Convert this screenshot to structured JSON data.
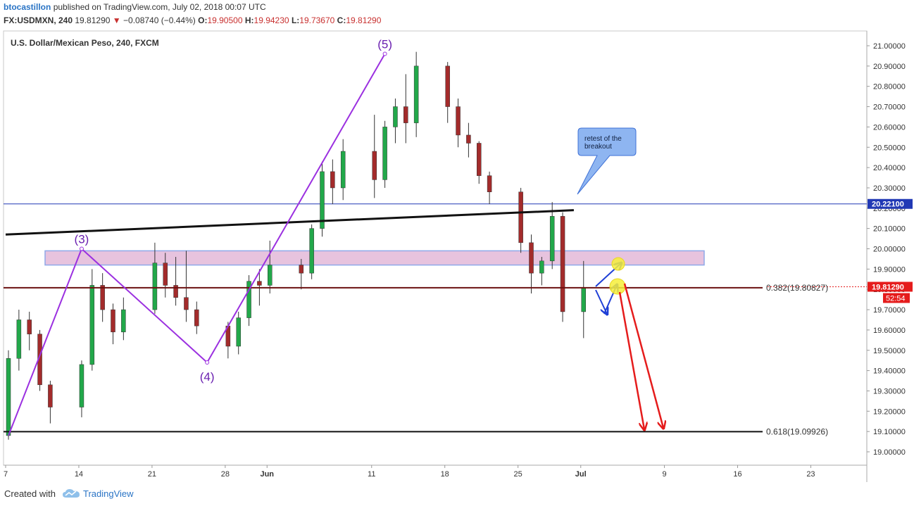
{
  "header": {
    "author": "btocastillon",
    "published": "published on TradingView.com, July 02, 2018 00:07 UTC",
    "symbol": "FX:USDMXN, 240",
    "last": "19.81290",
    "change": "−0.08740 (−0.44%)",
    "o_label": "O:",
    "o": "19.90500",
    "h_label": "H:",
    "h": "19.94230",
    "l_label": "L:",
    "l": "19.73670",
    "c_label": "C:",
    "c": "19.81290"
  },
  "footer": {
    "created_with": "Created with",
    "brand": "TradingView"
  },
  "colors": {
    "up": "#22a84a",
    "down": "#a32b2b",
    "wave": "#9b30e0",
    "arrow_red": "#e51c1c",
    "arrow_blue": "#1f3fd6",
    "price_badge": "#e51c1c",
    "level_badge": "#2139b5"
  },
  "chart_data": {
    "type": "candlestick",
    "title": "U.S. Dollar/Mexican Peso, 240, FXCM",
    "ylim": [
      18.98,
      21.12
    ],
    "y_ticks": [
      "19.00000",
      "19.10000",
      "19.20000",
      "19.30000",
      "19.40000",
      "19.50000",
      "19.60000",
      "19.70000",
      "19.80000",
      "19.90000",
      "20.00000",
      "20.10000",
      "20.20000",
      "20.30000",
      "20.40000",
      "20.50000",
      "20.60000",
      "20.70000",
      "20.80000",
      "20.90000",
      "21.00000"
    ],
    "x_ticks": [
      "7",
      "14",
      "21",
      "28",
      "Jun",
      "11",
      "18",
      "25",
      "Jul",
      "9",
      "16",
      "23"
    ],
    "price_line": {
      "value": 19.8129,
      "label": "19.81290",
      "countdown": "52:54"
    },
    "horizontal_level": {
      "value": 20.221,
      "label": "20.22100"
    },
    "fib_levels": [
      {
        "label": "0.382(19.80827)",
        "value": 19.80827
      },
      {
        "label": "0.618(19.09926)",
        "value": 19.09926
      }
    ],
    "wave_labels": [
      "(3)",
      "(4)",
      "(5)"
    ],
    "wave_points": [
      {
        "date": "May 7",
        "value": 19.08
      },
      {
        "label": "(3)",
        "date": "May 14",
        "value": 20.0
      },
      {
        "label": "(4)",
        "date": "May 26",
        "value": 19.44
      },
      {
        "label": "(5)",
        "date": "Jun 12",
        "value": 20.96
      }
    ],
    "trendline": {
      "start": {
        "date": "May 7",
        "value": 20.07
      },
      "end": {
        "date": "Jun 30",
        "value": 20.19
      }
    },
    "resistance_zone": {
      "low": 19.92,
      "high": 19.99
    },
    "callout": {
      "text_line1": "retest of the",
      "text_line2": "breakout"
    },
    "series": [
      {
        "date": "May 7",
        "ohlc": [
          19.08,
          19.5,
          19.06,
          19.46
        ]
      },
      {
        "date": "May 8",
        "ohlc": [
          19.46,
          19.7,
          19.4,
          19.65
        ]
      },
      {
        "date": "May 9",
        "ohlc": [
          19.65,
          19.69,
          19.5,
          19.58
        ]
      },
      {
        "date": "May 10",
        "ohlc": [
          19.58,
          19.6,
          19.3,
          19.33
        ]
      },
      {
        "date": "May 11",
        "ohlc": [
          19.33,
          19.35,
          19.14,
          19.22
        ]
      },
      {
        "date": "May 14",
        "ohlc": [
          19.22,
          19.45,
          19.17,
          19.43
        ]
      },
      {
        "date": "May 15",
        "ohlc": [
          19.43,
          19.9,
          19.4,
          19.82
        ]
      },
      {
        "date": "May 16",
        "ohlc": [
          19.82,
          19.88,
          19.64,
          19.7
        ]
      },
      {
        "date": "May 17",
        "ohlc": [
          19.7,
          19.73,
          19.53,
          19.59
        ]
      },
      {
        "date": "May 18",
        "ohlc": [
          19.59,
          19.76,
          19.55,
          19.7
        ]
      },
      {
        "date": "May 21",
        "ohlc": [
          19.7,
          20.03,
          19.68,
          19.93
        ]
      },
      {
        "date": "May 22",
        "ohlc": [
          19.93,
          19.98,
          19.76,
          19.82
        ]
      },
      {
        "date": "May 23",
        "ohlc": [
          19.82,
          19.96,
          19.72,
          19.76
        ]
      },
      {
        "date": "May 24",
        "ohlc": [
          19.76,
          19.99,
          19.64,
          19.7
        ]
      },
      {
        "date": "May 25",
        "ohlc": [
          19.7,
          19.74,
          19.58,
          19.62
        ]
      },
      {
        "date": "May 28",
        "ohlc": [
          19.62,
          19.64,
          19.46,
          19.52
        ]
      },
      {
        "date": "May 29",
        "ohlc": [
          19.52,
          19.69,
          19.48,
          19.66
        ]
      },
      {
        "date": "May 30",
        "ohlc": [
          19.66,
          19.87,
          19.62,
          19.84
        ]
      },
      {
        "date": "May 31",
        "ohlc": [
          19.84,
          19.9,
          19.72,
          19.82
        ]
      },
      {
        "date": "Jun 1",
        "ohlc": [
          19.82,
          20.04,
          19.78,
          19.92
        ]
      },
      {
        "date": "Jun 4",
        "ohlc": [
          19.92,
          19.95,
          19.8,
          19.88
        ]
      },
      {
        "date": "Jun 5",
        "ohlc": [
          19.88,
          20.12,
          19.85,
          20.1
        ]
      },
      {
        "date": "Jun 6",
        "ohlc": [
          20.1,
          20.43,
          20.06,
          20.38
        ]
      },
      {
        "date": "Jun 7",
        "ohlc": [
          20.38,
          20.44,
          20.22,
          20.3
        ]
      },
      {
        "date": "Jun 8",
        "ohlc": [
          20.3,
          20.54,
          20.24,
          20.48
        ]
      },
      {
        "date": "Jun 11",
        "ohlc": [
          20.48,
          20.66,
          20.25,
          20.34
        ]
      },
      {
        "date": "Jun 12",
        "ohlc": [
          20.34,
          20.63,
          20.3,
          20.6
        ]
      },
      {
        "date": "Jun 13",
        "ohlc": [
          20.6,
          20.74,
          20.52,
          20.7
        ]
      },
      {
        "date": "Jun 14",
        "ohlc": [
          20.7,
          20.86,
          20.52,
          20.62
        ]
      },
      {
        "date": "Jun 15",
        "ohlc": [
          20.62,
          20.97,
          20.55,
          20.9
        ]
      },
      {
        "date": "Jun 18",
        "ohlc": [
          20.9,
          20.92,
          20.62,
          20.7
        ]
      },
      {
        "date": "Jun 19",
        "ohlc": [
          20.7,
          20.74,
          20.5,
          20.56
        ]
      },
      {
        "date": "Jun 20",
        "ohlc": [
          20.56,
          20.62,
          20.45,
          20.52
        ]
      },
      {
        "date": "Jun 21",
        "ohlc": [
          20.52,
          20.53,
          20.32,
          20.36
        ]
      },
      {
        "date": "Jun 22",
        "ohlc": [
          20.36,
          20.38,
          20.22,
          20.28
        ]
      },
      {
        "date": "Jun 25",
        "ohlc": [
          20.28,
          20.3,
          19.98,
          20.03
        ]
      },
      {
        "date": "Jun 26",
        "ohlc": [
          20.03,
          20.07,
          19.78,
          19.88
        ]
      },
      {
        "date": "Jun 27",
        "ohlc": [
          19.88,
          19.96,
          19.82,
          19.94
        ]
      },
      {
        "date": "Jun 28",
        "ohlc": [
          19.94,
          20.23,
          19.9,
          20.16
        ]
      },
      {
        "date": "Jun 29",
        "ohlc": [
          20.16,
          20.18,
          19.64,
          19.69
        ]
      },
      {
        "date": "Jul 1",
        "ohlc": [
          19.69,
          19.94,
          19.56,
          19.81
        ]
      }
    ]
  }
}
